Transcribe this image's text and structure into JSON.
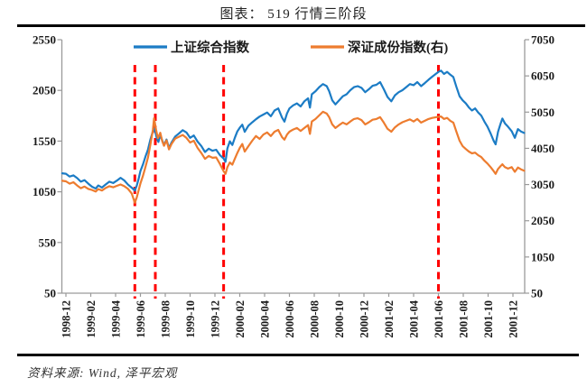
{
  "title": "图表： 519 行情三阶段",
  "source": "资料来源: Wind, 泽平宏观",
  "colors": {
    "shanghai_line": "#1C7CC5",
    "shenzhen_line": "#ED7C2F",
    "event_line": "#FF0000",
    "axis": "#9A9A9A",
    "rule": "#000000"
  },
  "chart_data": {
    "type": "line",
    "title": "图表： 519 行情三阶段",
    "x_unit": "months since 1998-12",
    "x_tick_labels": [
      "1998-12",
      "1999-02",
      "1999-04",
      "1999-06",
      "1999-08",
      "1999-10",
      "1999-12",
      "2000-02",
      "2000-04",
      "2000-06",
      "2000-08",
      "2000-10",
      "2000-12",
      "2001-02",
      "2001-04",
      "2001-06",
      "2001-08",
      "2001-10",
      "2001-12"
    ],
    "x_tick_months": [
      0,
      2,
      4,
      6,
      8,
      10,
      12,
      14,
      16,
      18,
      20,
      22,
      24,
      26,
      28,
      30,
      32,
      34,
      36
    ],
    "left_axis": {
      "min": 50,
      "max": 2550,
      "step": 500,
      "ticks": [
        "2550",
        "2050",
        "1550",
        "1050",
        "550",
        "50"
      ]
    },
    "right_axis": {
      "min": 50,
      "max": 7050,
      "step": 1000,
      "ticks": [
        "7050",
        "6050",
        "5050",
        "4050",
        "3050",
        "2050",
        "1050",
        "50"
      ]
    },
    "grid": false,
    "legend_position": "top-center",
    "event_lines": {
      "style": "dashed",
      "color": "#FF0000",
      "x_months": [
        5.55,
        7.2,
        12.7,
        30.0
      ]
    },
    "series": [
      {
        "name": "上证综合指数",
        "axis": "left",
        "color": "#1C7CC5",
        "points": [
          [
            -0.3,
            1232
          ],
          [
            0,
            1228
          ],
          [
            0.3,
            1200
          ],
          [
            0.6,
            1212
          ],
          [
            0.9,
            1185
          ],
          [
            1.2,
            1150
          ],
          [
            1.5,
            1165
          ],
          [
            1.8,
            1130
          ],
          [
            2.1,
            1100
          ],
          [
            2.4,
            1082
          ],
          [
            2.6,
            1112
          ],
          [
            2.9,
            1092
          ],
          [
            3.2,
            1122
          ],
          [
            3.5,
            1150
          ],
          [
            3.8,
            1136
          ],
          [
            4.1,
            1160
          ],
          [
            4.4,
            1188
          ],
          [
            4.7,
            1162
          ],
          [
            5.0,
            1120
          ],
          [
            5.3,
            1090
          ],
          [
            5.55,
            1062
          ],
          [
            5.7,
            1110
          ],
          [
            5.85,
            1175
          ],
          [
            6.0,
            1255
          ],
          [
            6.2,
            1320
          ],
          [
            6.4,
            1395
          ],
          [
            6.6,
            1465
          ],
          [
            6.8,
            1565
          ],
          [
            7.0,
            1645
          ],
          [
            7.15,
            1672
          ],
          [
            7.3,
            1585
          ],
          [
            7.45,
            1542
          ],
          [
            7.6,
            1612
          ],
          [
            7.75,
            1558
          ],
          [
            7.9,
            1512
          ],
          [
            8.1,
            1565
          ],
          [
            8.3,
            1482
          ],
          [
            8.5,
            1535
          ],
          [
            8.8,
            1595
          ],
          [
            9.1,
            1625
          ],
          [
            9.4,
            1658
          ],
          [
            9.7,
            1635
          ],
          [
            10.0,
            1582
          ],
          [
            10.3,
            1605
          ],
          [
            10.6,
            1545
          ],
          [
            10.9,
            1502
          ],
          [
            11.2,
            1442
          ],
          [
            11.5,
            1475
          ],
          [
            11.8,
            1455
          ],
          [
            12.1,
            1465
          ],
          [
            12.4,
            1412
          ],
          [
            12.7,
            1378
          ],
          [
            12.85,
            1345
          ],
          [
            13.0,
            1478
          ],
          [
            13.2,
            1548
          ],
          [
            13.4,
            1512
          ],
          [
            13.6,
            1582
          ],
          [
            13.8,
            1645
          ],
          [
            14.0,
            1682
          ],
          [
            14.2,
            1712
          ],
          [
            14.4,
            1642
          ],
          [
            14.7,
            1702
          ],
          [
            15.0,
            1735
          ],
          [
            15.3,
            1765
          ],
          [
            15.6,
            1792
          ],
          [
            15.9,
            1812
          ],
          [
            16.2,
            1832
          ],
          [
            16.5,
            1795
          ],
          [
            16.8,
            1852
          ],
          [
            17.1,
            1872
          ],
          [
            17.4,
            1782
          ],
          [
            17.6,
            1742
          ],
          [
            17.8,
            1822
          ],
          [
            18.0,
            1872
          ],
          [
            18.3,
            1902
          ],
          [
            18.6,
            1922
          ],
          [
            18.9,
            1892
          ],
          [
            19.2,
            1942
          ],
          [
            19.5,
            1972
          ],
          [
            19.65,
            1880
          ],
          [
            19.8,
            2012
          ],
          [
            20.1,
            2042
          ],
          [
            20.4,
            2082
          ],
          [
            20.7,
            2112
          ],
          [
            21.0,
            2092
          ],
          [
            21.2,
            2042
          ],
          [
            21.45,
            1952
          ],
          [
            21.7,
            1912
          ],
          [
            22.0,
            1952
          ],
          [
            22.3,
            1992
          ],
          [
            22.6,
            2012
          ],
          [
            22.9,
            2052
          ],
          [
            23.2,
            2082
          ],
          [
            23.5,
            2092
          ],
          [
            23.8,
            2075
          ],
          [
            24.1,
            2032
          ],
          [
            24.4,
            2062
          ],
          [
            24.7,
            2095
          ],
          [
            25.0,
            2105
          ],
          [
            25.3,
            2132
          ],
          [
            25.6,
            2062
          ],
          [
            25.9,
            1985
          ],
          [
            26.2,
            1942
          ],
          [
            26.5,
            2002
          ],
          [
            26.8,
            2032
          ],
          [
            27.1,
            2052
          ],
          [
            27.4,
            2082
          ],
          [
            27.7,
            2112
          ],
          [
            28.0,
            2102
          ],
          [
            28.3,
            2132
          ],
          [
            28.6,
            2092
          ],
          [
            28.9,
            2122
          ],
          [
            29.2,
            2155
          ],
          [
            29.5,
            2185
          ],
          [
            29.8,
            2215
          ],
          [
            30.0,
            2232
          ],
          [
            30.2,
            2245
          ],
          [
            30.45,
            2212
          ],
          [
            30.7,
            2232
          ],
          [
            30.95,
            2205
          ],
          [
            31.2,
            2182
          ],
          [
            31.45,
            2085
          ],
          [
            31.7,
            1992
          ],
          [
            31.95,
            1952
          ],
          [
            32.2,
            1922
          ],
          [
            32.45,
            1882
          ],
          [
            32.7,
            1852
          ],
          [
            32.95,
            1872
          ],
          [
            33.2,
            1832
          ],
          [
            33.45,
            1802
          ],
          [
            33.7,
            1742
          ],
          [
            33.95,
            1692
          ],
          [
            34.2,
            1625
          ],
          [
            34.45,
            1552
          ],
          [
            34.6,
            1518
          ],
          [
            34.8,
            1642
          ],
          [
            35.0,
            1722
          ],
          [
            35.15,
            1772
          ],
          [
            35.35,
            1725
          ],
          [
            35.6,
            1692
          ],
          [
            35.9,
            1648
          ],
          [
            36.15,
            1582
          ],
          [
            36.4,
            1668
          ],
          [
            36.65,
            1645
          ],
          [
            36.9,
            1630
          ]
        ]
      },
      {
        "name": "深证成份指数(右)",
        "axis": "right",
        "color": "#ED7C2F",
        "points": [
          [
            -0.3,
            3155
          ],
          [
            0,
            3140
          ],
          [
            0.3,
            3075
          ],
          [
            0.6,
            3115
          ],
          [
            0.9,
            3025
          ],
          [
            1.2,
            2950
          ],
          [
            1.5,
            2995
          ],
          [
            1.8,
            2930
          ],
          [
            2.1,
            2900
          ],
          [
            2.4,
            2858
          ],
          [
            2.6,
            2925
          ],
          [
            2.9,
            2885
          ],
          [
            3.2,
            2955
          ],
          [
            3.5,
            3005
          ],
          [
            3.8,
            2975
          ],
          [
            4.1,
            3015
          ],
          [
            4.4,
            3052
          ],
          [
            4.7,
            3005
          ],
          [
            5.0,
            2930
          ],
          [
            5.3,
            2800
          ],
          [
            5.55,
            2545
          ],
          [
            5.7,
            2690
          ],
          [
            5.85,
            2880
          ],
          [
            6.0,
            3080
          ],
          [
            6.2,
            3290
          ],
          [
            6.4,
            3530
          ],
          [
            6.6,
            3790
          ],
          [
            6.8,
            4150
          ],
          [
            7.0,
            4560
          ],
          [
            7.1,
            4880
          ],
          [
            7.25,
            4580
          ],
          [
            7.4,
            4330
          ],
          [
            7.6,
            4480
          ],
          [
            7.75,
            4250
          ],
          [
            7.9,
            4120
          ],
          [
            8.1,
            4270
          ],
          [
            8.3,
            4020
          ],
          [
            8.5,
            4170
          ],
          [
            8.8,
            4320
          ],
          [
            9.1,
            4370
          ],
          [
            9.4,
            4420
          ],
          [
            9.7,
            4340
          ],
          [
            10.0,
            4210
          ],
          [
            10.3,
            4260
          ],
          [
            10.6,
            4060
          ],
          [
            10.9,
            3920
          ],
          [
            11.2,
            3760
          ],
          [
            11.5,
            3840
          ],
          [
            11.8,
            3790
          ],
          [
            12.1,
            3800
          ],
          [
            12.4,
            3620
          ],
          [
            12.7,
            3420
          ],
          [
            12.85,
            3345
          ],
          [
            13.0,
            3530
          ],
          [
            13.2,
            3660
          ],
          [
            13.4,
            3600
          ],
          [
            13.6,
            3760
          ],
          [
            13.8,
            3920
          ],
          [
            14.0,
            4060
          ],
          [
            14.2,
            4170
          ],
          [
            14.4,
            3960
          ],
          [
            14.7,
            4110
          ],
          [
            15.0,
            4260
          ],
          [
            15.3,
            4390
          ],
          [
            15.6,
            4310
          ],
          [
            15.9,
            4430
          ],
          [
            16.2,
            4490
          ],
          [
            16.5,
            4390
          ],
          [
            16.8,
            4510
          ],
          [
            17.1,
            4560
          ],
          [
            17.4,
            4360
          ],
          [
            17.6,
            4290
          ],
          [
            17.8,
            4430
          ],
          [
            18.0,
            4510
          ],
          [
            18.3,
            4570
          ],
          [
            18.6,
            4610
          ],
          [
            18.9,
            4530
          ],
          [
            19.2,
            4610
          ],
          [
            19.5,
            4690
          ],
          [
            19.65,
            4450
          ],
          [
            19.8,
            4790
          ],
          [
            20.1,
            4860
          ],
          [
            20.4,
            4960
          ],
          [
            20.7,
            5060
          ],
          [
            21.0,
            5010
          ],
          [
            21.2,
            4910
          ],
          [
            21.45,
            4710
          ],
          [
            21.7,
            4610
          ],
          [
            22.0,
            4690
          ],
          [
            22.3,
            4760
          ],
          [
            22.6,
            4710
          ],
          [
            22.9,
            4790
          ],
          [
            23.2,
            4860
          ],
          [
            23.5,
            4880
          ],
          [
            23.8,
            4830
          ],
          [
            24.1,
            4710
          ],
          [
            24.4,
            4770
          ],
          [
            24.7,
            4840
          ],
          [
            25.0,
            4860
          ],
          [
            25.3,
            4910
          ],
          [
            25.6,
            4760
          ],
          [
            25.9,
            4590
          ],
          [
            26.2,
            4510
          ],
          [
            26.5,
            4630
          ],
          [
            26.8,
            4710
          ],
          [
            27.1,
            4770
          ],
          [
            27.4,
            4810
          ],
          [
            27.7,
            4850
          ],
          [
            28.0,
            4790
          ],
          [
            28.3,
            4860
          ],
          [
            28.6,
            4760
          ],
          [
            28.9,
            4810
          ],
          [
            29.2,
            4860
          ],
          [
            29.5,
            4890
          ],
          [
            29.8,
            4910
          ],
          [
            30.0,
            4920
          ],
          [
            30.2,
            4930
          ],
          [
            30.45,
            4860
          ],
          [
            30.7,
            4890
          ],
          [
            30.95,
            4810
          ],
          [
            31.2,
            4760
          ],
          [
            31.45,
            4510
          ],
          [
            31.7,
            4260
          ],
          [
            31.95,
            4110
          ],
          [
            32.2,
            4030
          ],
          [
            32.45,
            3960
          ],
          [
            32.7,
            3910
          ],
          [
            32.95,
            3930
          ],
          [
            33.2,
            3860
          ],
          [
            33.45,
            3810
          ],
          [
            33.7,
            3710
          ],
          [
            33.95,
            3630
          ],
          [
            34.2,
            3530
          ],
          [
            34.45,
            3420
          ],
          [
            34.6,
            3345
          ],
          [
            34.8,
            3480
          ],
          [
            35.0,
            3560
          ],
          [
            35.15,
            3610
          ],
          [
            35.35,
            3530
          ],
          [
            35.6,
            3490
          ],
          [
            35.9,
            3530
          ],
          [
            36.15,
            3400
          ],
          [
            36.4,
            3520
          ],
          [
            36.65,
            3470
          ],
          [
            36.9,
            3430
          ]
        ]
      }
    ]
  }
}
